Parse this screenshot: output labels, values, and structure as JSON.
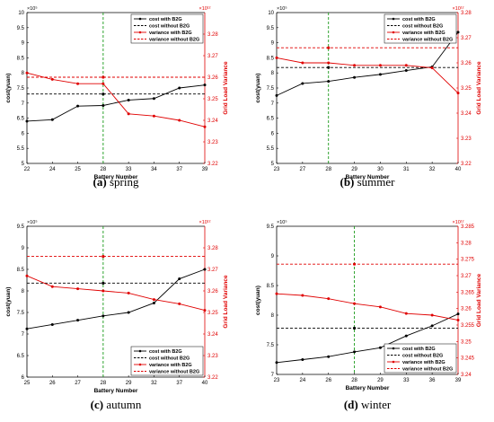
{
  "chart_data": [
    {
      "type": "line",
      "caption_letter": "(a)",
      "caption_text": " spring",
      "x_tick_labels": [
        "22",
        "24",
        "25",
        "28",
        "33",
        "34",
        "37",
        "39"
      ],
      "xlabel": "Battery Number",
      "ylabel_left": "cost(yuan)",
      "ylabel_right": "Grid Load Variance",
      "left_exponent": "×10⁵",
      "right_exponent": "×10¹²",
      "ylim_left": [
        5,
        10
      ],
      "left_ticks": [
        "5",
        "5.5",
        "6",
        "6.5",
        "7",
        "7.5",
        "8",
        "8.5",
        "9",
        "9.5",
        "10"
      ],
      "ylim_right": [
        3.22,
        3.29
      ],
      "right_ticks": [
        "3.22",
        "3.23",
        "3.24",
        "3.25",
        "3.26",
        "3.27",
        "3.28"
      ],
      "vline_index": 3,
      "legend_position": "top-right",
      "series": [
        {
          "name": "cost with B2G",
          "axis": "left",
          "color": "#000000",
          "style": "solid",
          "marker": true,
          "values": [
            6.4,
            6.45,
            6.9,
            6.92,
            7.1,
            7.15,
            7.5,
            7.6
          ]
        },
        {
          "name": "cost without B2G",
          "axis": "left",
          "color": "#000000",
          "style": "dashed",
          "marker": false,
          "values": [
            7.3,
            7.3,
            7.3,
            7.3,
            7.3,
            7.3,
            7.3,
            7.3
          ]
        },
        {
          "name": "variance with B2G",
          "axis": "right",
          "color": "#e00000",
          "style": "solid",
          "marker": true,
          "values": [
            3.262,
            3.259,
            3.257,
            3.257,
            3.243,
            3.242,
            3.24,
            3.237
          ]
        },
        {
          "name": "variance without B2G",
          "axis": "right",
          "color": "#e00000",
          "style": "dashed",
          "marker": false,
          "values": [
            3.26,
            3.26,
            3.26,
            3.26,
            3.26,
            3.26,
            3.26,
            3.26
          ]
        }
      ]
    },
    {
      "type": "line",
      "caption_letter": "(b)",
      "caption_text": " summer",
      "x_tick_labels": [
        "23",
        "27",
        "28",
        "29",
        "30",
        "31",
        "32",
        "40"
      ],
      "xlabel": "Battery Number",
      "ylabel_left": "cost(yuan)",
      "ylabel_right": "Grid Load Variance",
      "left_exponent": "×10⁵",
      "right_exponent": "×10¹²",
      "ylim_left": [
        5,
        10
      ],
      "left_ticks": [
        "5",
        "5.5",
        "6",
        "6.5",
        "7",
        "7.5",
        "8",
        "8.5",
        "9",
        "9.5",
        "10"
      ],
      "ylim_right": [
        3.22,
        3.28
      ],
      "right_ticks": [
        "3.22",
        "3.23",
        "3.24",
        "3.25",
        "3.26",
        "3.27",
        "3.28"
      ],
      "vline_index": 2,
      "legend_position": "top-right",
      "series": [
        {
          "name": "cost with B2G",
          "axis": "left",
          "color": "#000000",
          "style": "solid",
          "marker": true,
          "values": [
            7.25,
            7.65,
            7.72,
            7.85,
            7.95,
            8.08,
            8.2,
            9.35
          ]
        },
        {
          "name": "cost without B2G",
          "axis": "left",
          "color": "#000000",
          "style": "dashed",
          "marker": false,
          "values": [
            8.18,
            8.18,
            8.18,
            8.18,
            8.18,
            8.18,
            8.18,
            8.18
          ]
        },
        {
          "name": "variance with B2G",
          "axis": "right",
          "color": "#e00000",
          "style": "solid",
          "marker": true,
          "values": [
            3.262,
            3.26,
            3.26,
            3.259,
            3.259,
            3.259,
            3.258,
            3.248
          ]
        },
        {
          "name": "variance without B2G",
          "axis": "right",
          "color": "#e00000",
          "style": "dashed",
          "marker": false,
          "values": [
            3.266,
            3.266,
            3.266,
            3.266,
            3.266,
            3.266,
            3.266,
            3.266
          ]
        }
      ]
    },
    {
      "type": "line",
      "caption_letter": "(c)",
      "caption_text": " autumn",
      "x_tick_labels": [
        "25",
        "26",
        "27",
        "28",
        "29",
        "32",
        "37",
        "40"
      ],
      "xlabel": "Battery Number",
      "ylabel_left": "cost(yuan)",
      "ylabel_right": "Grid Load Variance",
      "left_exponent": "×10⁵",
      "right_exponent": "×10¹²",
      "ylim_left": [
        6,
        9.5
      ],
      "left_ticks": [
        "6",
        "6.5",
        "7",
        "7.5",
        "8",
        "8.5",
        "9",
        "9.5"
      ],
      "ylim_right": [
        3.22,
        3.29
      ],
      "right_ticks": [
        "3.22",
        "3.23",
        "3.24",
        "3.25",
        "3.26",
        "3.27",
        "3.28"
      ],
      "vline_index": 3,
      "legend_position": "bottom-right",
      "series": [
        {
          "name": "cost with B2G",
          "axis": "left",
          "color": "#000000",
          "style": "solid",
          "marker": true,
          "values": [
            7.12,
            7.22,
            7.32,
            7.42,
            7.5,
            7.72,
            8.28,
            8.5
          ]
        },
        {
          "name": "cost without B2G",
          "axis": "left",
          "color": "#000000",
          "style": "dashed",
          "marker": false,
          "values": [
            8.18,
            8.18,
            8.18,
            8.18,
            8.18,
            8.18,
            8.18,
            8.18
          ]
        },
        {
          "name": "variance with B2G",
          "axis": "right",
          "color": "#e00000",
          "style": "solid",
          "marker": true,
          "values": [
            3.267,
            3.262,
            3.261,
            3.26,
            3.259,
            3.256,
            3.254,
            3.251
          ]
        },
        {
          "name": "variance without B2G",
          "axis": "right",
          "color": "#e00000",
          "style": "dashed",
          "marker": false,
          "values": [
            3.276,
            3.276,
            3.276,
            3.276,
            3.276,
            3.276,
            3.276,
            3.276
          ]
        }
      ]
    },
    {
      "type": "line",
      "caption_letter": "(d)",
      "caption_text": " winter",
      "x_tick_labels": [
        "23",
        "24",
        "26",
        "28",
        "29",
        "33",
        "36",
        "39"
      ],
      "xlabel": "Battery Number",
      "ylabel_left": "cost(yuan)",
      "ylabel_right": "Grid Load Variance",
      "left_exponent": "×10⁵",
      "right_exponent": "×10¹²",
      "ylim_left": [
        7,
        9.5
      ],
      "left_ticks": [
        "7",
        "7.5",
        "8",
        "8.5",
        "9",
        "9.5"
      ],
      "ylim_right": [
        3.24,
        3.285
      ],
      "right_ticks": [
        "3.24",
        "3.245",
        "3.25",
        "3.255",
        "3.26",
        "3.265",
        "3.27",
        "3.275",
        "3.28",
        "3.285"
      ],
      "vline_index": 3,
      "legend_position": "bottom-right",
      "series": [
        {
          "name": "cost with B2G",
          "axis": "left",
          "color": "#000000",
          "style": "solid",
          "marker": true,
          "values": [
            7.2,
            7.25,
            7.3,
            7.38,
            7.45,
            7.65,
            7.82,
            8.02
          ]
        },
        {
          "name": "cost without B2G",
          "axis": "left",
          "color": "#000000",
          "style": "dashed",
          "marker": false,
          "values": [
            7.78,
            7.78,
            7.78,
            7.78,
            7.78,
            7.78,
            7.78,
            7.78
          ]
        },
        {
          "name": "variance with B2G",
          "axis": "right",
          "color": "#e00000",
          "style": "solid",
          "marker": true,
          "values": [
            3.2645,
            3.264,
            3.263,
            3.2615,
            3.2605,
            3.2585,
            3.258,
            3.2565
          ]
        },
        {
          "name": "variance without B2G",
          "axis": "right",
          "color": "#e00000",
          "style": "dashed",
          "marker": false,
          "values": [
            3.2735,
            3.2735,
            3.2735,
            3.2735,
            3.2735,
            3.2735,
            3.2735,
            3.2735
          ]
        }
      ]
    }
  ]
}
